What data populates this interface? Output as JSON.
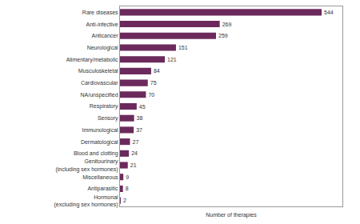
{
  "chart_data": {
    "type": "bar",
    "orientation": "horizontal",
    "categories": [
      "Rare diseases",
      "Anti-infective",
      "Anticancer",
      "Neurological",
      "Alimentary/metabolic",
      "Musculoskeletal",
      "Cardiovascular",
      "NA/unspecified",
      "Respiratory",
      "Sensory",
      "Immunological",
      "Dermatological",
      "Blood and clotting",
      "Genitourinary\n(including sex hormones)",
      "Miscellaneous",
      "Antiparasitic",
      "Hormonal\n(excluding sex hormones)"
    ],
    "values": [
      544,
      269,
      259,
      151,
      121,
      84,
      75,
      70,
      45,
      38,
      37,
      27,
      24,
      21,
      9,
      8,
      2
    ],
    "color": "#6b2a5b",
    "x_label": "Number of therapies",
    "xlim": [
      0,
      600
    ],
    "data_labels": true,
    "tick_labels": "y",
    "grid": false
  }
}
